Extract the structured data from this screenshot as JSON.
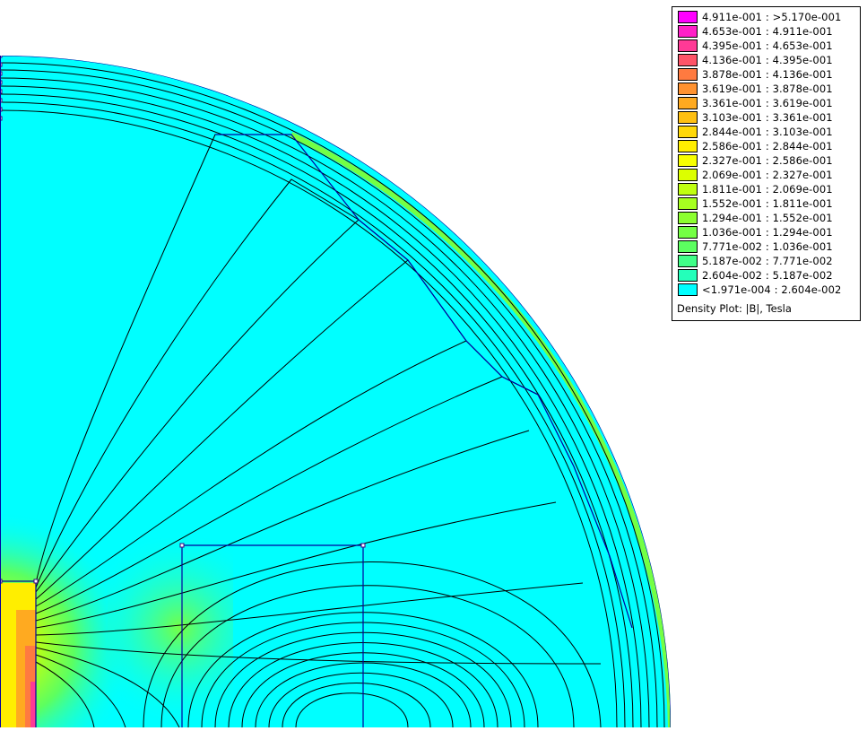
{
  "legend": {
    "entries": [
      {
        "label": "4.911e-001 : >5.170e-001",
        "color": "#ff00ff"
      },
      {
        "label": "4.653e-001 : 4.911e-001",
        "color": "#ff20c8"
      },
      {
        "label": "4.395e-001 : 4.653e-001",
        "color": "#ff3a96"
      },
      {
        "label": "4.136e-001 : 4.395e-001",
        "color": "#ff5468"
      },
      {
        "label": "3.878e-001 : 4.136e-001",
        "color": "#ff7a40"
      },
      {
        "label": "3.619e-001 : 3.878e-001",
        "color": "#ff9230"
      },
      {
        "label": "3.361e-001 : 3.619e-001",
        "color": "#ffaa20"
      },
      {
        "label": "3.103e-001 : 3.361e-001",
        "color": "#ffc012"
      },
      {
        "label": "2.844e-001 : 3.103e-001",
        "color": "#ffd808"
      },
      {
        "label": "2.586e-001 : 2.844e-001",
        "color": "#ffee00"
      },
      {
        "label": "2.327e-001 : 2.586e-001",
        "color": "#f8ff00"
      },
      {
        "label": "2.069e-001 : 2.327e-001",
        "color": "#dcff00"
      },
      {
        "label": "1.811e-001 : 2.069e-001",
        "color": "#c0ff10"
      },
      {
        "label": "1.552e-001 : 1.811e-001",
        "color": "#a6ff20"
      },
      {
        "label": "1.294e-001 : 1.552e-001",
        "color": "#8cff30"
      },
      {
        "label": "1.036e-001 : 1.294e-001",
        "color": "#74ff44"
      },
      {
        "label": "7.771e-002 : 1.036e-001",
        "color": "#5cff60"
      },
      {
        "label": "5.187e-002 : 7.771e-002",
        "color": "#40ff88"
      },
      {
        "label": "2.604e-002 : 5.187e-002",
        "color": "#24ffba"
      },
      {
        "label": "<1.971e-004 : 2.604e-002",
        "color": "#00ffff"
      }
    ],
    "caption": "Density Plot: |B|, Tesla"
  },
  "colors": {
    "field": "#00ffff",
    "contour": "#000000",
    "geometry": "#0000a0"
  }
}
